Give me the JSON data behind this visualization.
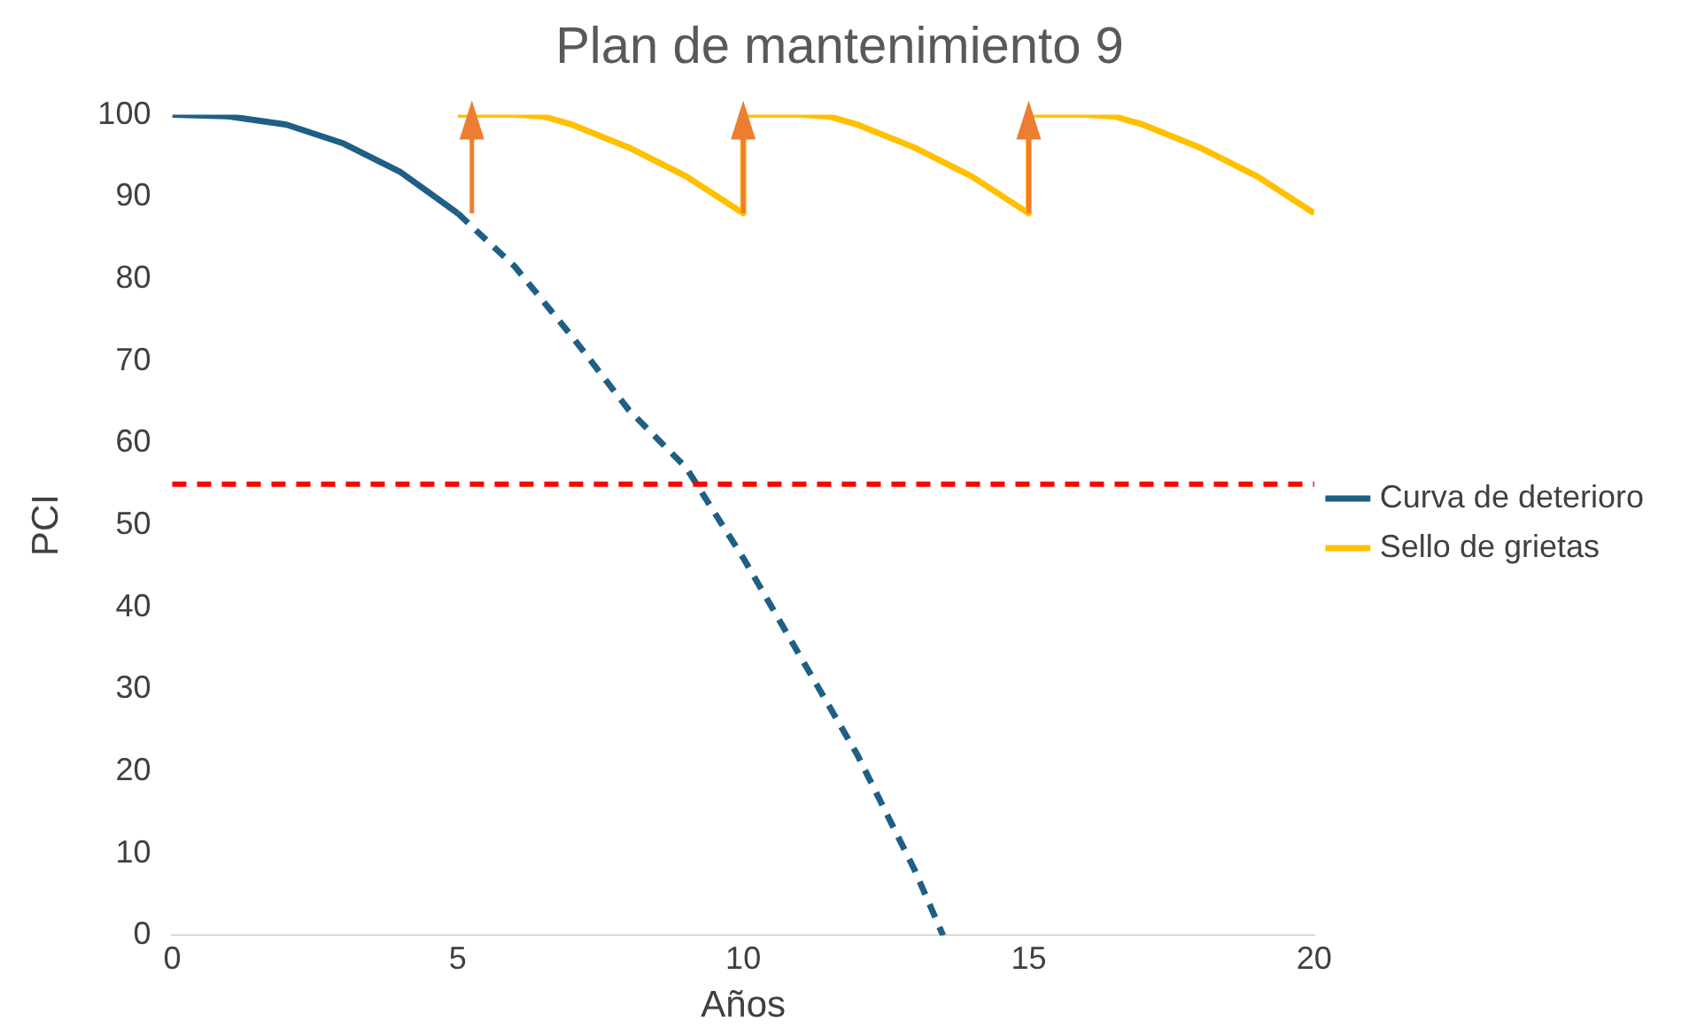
{
  "chart_data": {
    "type": "line",
    "title": "Plan de mantenimiento 9",
    "xlabel": "Años",
    "ylabel": "PCI",
    "xlim": [
      0,
      20
    ],
    "xticks": [
      0,
      5,
      10,
      15,
      20
    ],
    "ylim": [
      0,
      100
    ],
    "yticks": [
      0,
      10,
      20,
      30,
      40,
      50,
      60,
      70,
      80,
      90,
      100
    ],
    "grid": false,
    "legend": "right",
    "marker": "none",
    "series": [
      {
        "name": "Curva de deterioro",
        "color": "#1f5f85",
        "line_style": "solid",
        "x": [
          0,
          1,
          2,
          3,
          4,
          5
        ],
        "values": [
          100,
          99.8,
          98.8,
          96.5,
          93,
          88
        ]
      },
      {
        "color": "#1f5f85",
        "line_style": "dashed",
        "x": [
          5,
          6,
          7,
          8,
          9,
          10,
          11,
          12,
          13,
          13.5
        ],
        "values": [
          88,
          81.5,
          73,
          64,
          57,
          46,
          34,
          22,
          8,
          0
        ]
      },
      {
        "name": "Sello de grietas",
        "color": "#ffc000",
        "line_style": "solid",
        "x": [
          5,
          6,
          6.5,
          7,
          8,
          9,
          10,
          10,
          11,
          11.5,
          12,
          13,
          14,
          15,
          15,
          16,
          16.5,
          17,
          18,
          19,
          20
        ],
        "values": [
          100,
          100,
          99.8,
          98.8,
          96,
          92.5,
          88,
          100,
          100,
          99.8,
          98.8,
          96,
          92.5,
          88,
          100,
          100,
          99.8,
          98.8,
          96,
          92.5,
          88
        ]
      }
    ],
    "ref_lines": [
      {
        "axis": "y",
        "value": 55,
        "color": "#ff0000",
        "line_style": "dashed"
      }
    ]
  }
}
